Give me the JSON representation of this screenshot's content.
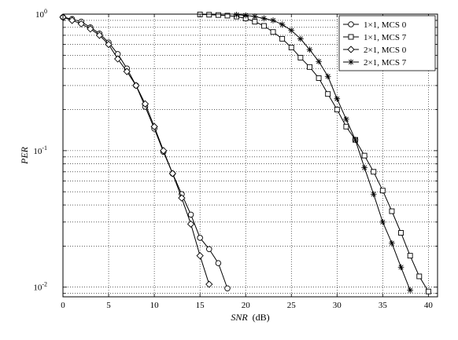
{
  "chart_data": {
    "type": "line",
    "title": "",
    "xlabel": "SNR",
    "xlabel_unit": "(dB)",
    "ylabel": "PER",
    "xlim": [
      0,
      41
    ],
    "ylim": [
      0.0085,
      1
    ],
    "yscale": "log",
    "grid": true,
    "legend_position": "top-right",
    "x_ticks": [
      0,
      5,
      10,
      15,
      20,
      25,
      30,
      35,
      40
    ],
    "y_ticks": [
      {
        "value": 1,
        "base": "10",
        "exp": "0"
      },
      {
        "value": 0.1,
        "base": "10",
        "exp": "-1"
      },
      {
        "value": 0.01,
        "base": "10",
        "exp": "-2"
      }
    ],
    "series": [
      {
        "name": "1×1, MCS 0",
        "marker": "circle",
        "x": [
          0,
          1,
          2,
          3,
          4,
          5,
          6,
          7,
          8,
          9,
          10,
          11,
          12,
          13,
          14,
          15,
          16,
          17,
          18
        ],
        "y": [
          0.95,
          0.92,
          0.88,
          0.8,
          0.72,
          0.62,
          0.51,
          0.4,
          0.3,
          0.21,
          0.145,
          0.098,
          0.068,
          0.048,
          0.034,
          0.023,
          0.019,
          0.015,
          0.0098
        ]
      },
      {
        "name": "1×1, MCS 7",
        "marker": "square",
        "x": [
          15,
          16,
          17,
          18,
          19,
          20,
          21,
          22,
          23,
          24,
          25,
          26,
          27,
          28,
          29,
          30,
          31,
          32,
          33,
          34,
          35,
          36,
          37,
          38,
          39,
          40
        ],
        "y": [
          0.995,
          0.99,
          0.985,
          0.975,
          0.96,
          0.93,
          0.88,
          0.82,
          0.74,
          0.66,
          0.57,
          0.48,
          0.41,
          0.34,
          0.26,
          0.2,
          0.15,
          0.12,
          0.092,
          0.07,
          0.051,
          0.036,
          0.025,
          0.017,
          0.012,
          0.0093
        ]
      },
      {
        "name": "2×1, MCS 0",
        "marker": "diamond",
        "x": [
          0,
          1,
          2,
          3,
          4,
          5,
          6,
          7,
          8,
          9,
          10,
          11,
          12,
          13,
          14,
          15,
          16
        ],
        "y": [
          0.95,
          0.9,
          0.85,
          0.78,
          0.7,
          0.6,
          0.47,
          0.38,
          0.3,
          0.22,
          0.15,
          0.1,
          0.068,
          0.045,
          0.029,
          0.017,
          0.0105
        ]
      },
      {
        "name": "2×1, MCS 7",
        "marker": "star",
        "x": [
          19,
          20,
          21,
          22,
          23,
          24,
          25,
          26,
          27,
          28,
          29,
          30,
          31,
          32,
          33,
          34,
          35,
          36,
          37,
          38
        ],
        "y": [
          0.99,
          0.98,
          0.96,
          0.93,
          0.9,
          0.84,
          0.76,
          0.66,
          0.55,
          0.45,
          0.35,
          0.24,
          0.17,
          0.12,
          0.075,
          0.048,
          0.03,
          0.021,
          0.014,
          0.0095
        ]
      }
    ]
  }
}
